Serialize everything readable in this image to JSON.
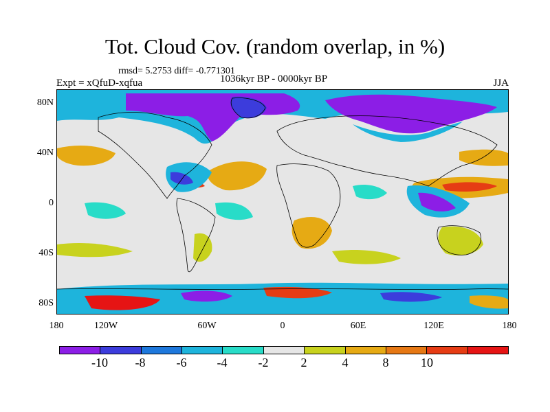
{
  "title": "Tot. Cloud Cov. (random overlap, in %)",
  "stats_text": "rmsd= 5.2753  diff= -0.771301",
  "period": "1036kyr BP - 0000kyr BP",
  "experiment": "Expt = xQfuD-xqfua",
  "season": "JJA",
  "map": {
    "projection": "cylindrical equidistant",
    "lon_range": [
      -180,
      180
    ],
    "lat_range": [
      -90,
      90
    ],
    "y_ticks": [
      "80N",
      "40N",
      "0",
      "40S",
      "80S"
    ],
    "x_ticks": [
      "180",
      "120W",
      "60W",
      "0",
      "60E",
      "120E",
      "180"
    ],
    "background_color": "#e6e6e6"
  },
  "colorbar": {
    "labels": [
      "-10",
      "-8",
      "-6",
      "-4",
      "-2",
      "2",
      "4",
      "8",
      "10"
    ],
    "colors": [
      "#8c1ee6",
      "#3c3cdc",
      "#1e78dc",
      "#1eb4dc",
      "#28dcc8",
      "#e6e6e6",
      "#c8d21e",
      "#e6aa14",
      "#e67814",
      "#e63c14",
      "#e61414"
    ]
  }
}
